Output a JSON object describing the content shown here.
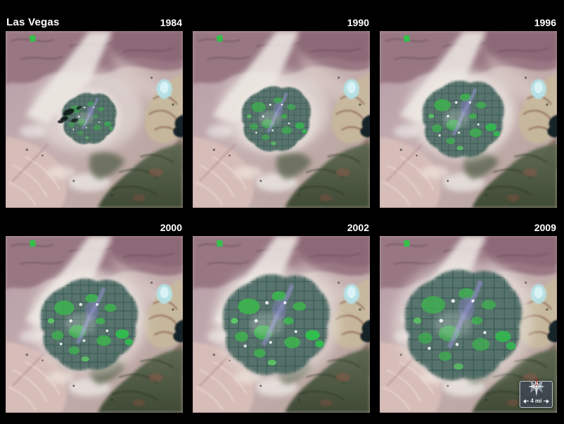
{
  "title": "Las Vegas",
  "panels": [
    {
      "year": "1984",
      "urban_scale": 0.52,
      "green_level": 0.6,
      "dark_patches": 0.9,
      "show_title": true
    },
    {
      "year": "1990",
      "urban_scale": 0.66,
      "green_level": 0.8,
      "dark_patches": 0
    },
    {
      "year": "1996",
      "urban_scale": 0.78,
      "green_level": 0.9,
      "dark_patches": 0
    },
    {
      "year": "2000",
      "urban_scale": 0.93,
      "green_level": 0.95,
      "dark_patches": 0
    },
    {
      "year": "2002",
      "urban_scale": 1.02,
      "green_level": 1.0,
      "dark_patches": 0
    },
    {
      "year": "2009",
      "urban_scale": 1.12,
      "green_level": 0.85,
      "dark_patches": 0,
      "show_compass": true
    }
  ],
  "scale_bar": {
    "label": "4 mi"
  },
  "compass": {
    "north_label": "N"
  },
  "colors": {
    "background": "#000000",
    "label_text": "#ffffff",
    "terrain_mauve": "#c4aeb0",
    "urban_teal": "#4a6862",
    "urban_green": "#3db54e",
    "lake_mead": "#0d1a24",
    "dry_lake_cyan": "#b6e3e8"
  }
}
